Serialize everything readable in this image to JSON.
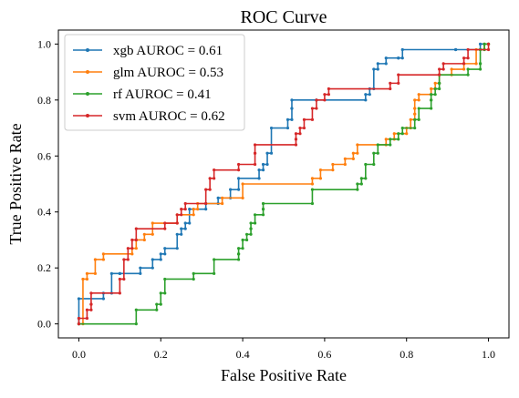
{
  "chart_data": {
    "type": "line",
    "title": "ROC Curve",
    "xlabel": "False Positive Rate",
    "ylabel": "True Positive Rate",
    "xlim": [
      -0.05,
      1.05
    ],
    "ylim": [
      -0.05,
      1.05
    ],
    "xticks": [
      "0.0",
      "0.2",
      "0.4",
      "0.6",
      "0.8",
      "1.0"
    ],
    "yticks": [
      "0.0",
      "0.2",
      "0.4",
      "0.6",
      "0.8",
      "1.0"
    ],
    "grid": false,
    "legend_position": "top-left",
    "series": [
      {
        "name": "xgb AUROC = 0.61",
        "color": "#1f77b4",
        "points": [
          [
            0,
            0
          ],
          [
            0,
            0.02
          ],
          [
            0,
            0.09
          ],
          [
            0.06,
            0.09
          ],
          [
            0.06,
            0.11
          ],
          [
            0.08,
            0.11
          ],
          [
            0.08,
            0.18
          ],
          [
            0.1,
            0.18
          ],
          [
            0.1,
            0.18
          ],
          [
            0.15,
            0.18
          ],
          [
            0.15,
            0.2
          ],
          [
            0.18,
            0.2
          ],
          [
            0.18,
            0.23
          ],
          [
            0.2,
            0.23
          ],
          [
            0.2,
            0.25
          ],
          [
            0.21,
            0.25
          ],
          [
            0.21,
            0.27
          ],
          [
            0.24,
            0.27
          ],
          [
            0.24,
            0.32
          ],
          [
            0.25,
            0.32
          ],
          [
            0.25,
            0.34
          ],
          [
            0.26,
            0.34
          ],
          [
            0.26,
            0.36
          ],
          [
            0.27,
            0.36
          ],
          [
            0.27,
            0.41
          ],
          [
            0.31,
            0.41
          ],
          [
            0.31,
            0.43
          ],
          [
            0.34,
            0.43
          ],
          [
            0.34,
            0.45
          ],
          [
            0.37,
            0.45
          ],
          [
            0.37,
            0.48
          ],
          [
            0.39,
            0.48
          ],
          [
            0.39,
            0.52
          ],
          [
            0.44,
            0.52
          ],
          [
            0.44,
            0.55
          ],
          [
            0.45,
            0.55
          ],
          [
            0.45,
            0.57
          ],
          [
            0.46,
            0.57
          ],
          [
            0.46,
            0.61
          ],
          [
            0.47,
            0.61
          ],
          [
            0.47,
            0.7
          ],
          [
            0.51,
            0.7
          ],
          [
            0.51,
            0.73
          ],
          [
            0.52,
            0.73
          ],
          [
            0.52,
            0.77
          ],
          [
            0.52,
            0.77
          ],
          [
            0.52,
            0.8
          ],
          [
            0.58,
            0.8
          ],
          [
            0.58,
            0.8
          ],
          [
            0.7,
            0.8
          ],
          [
            0.7,
            0.82
          ],
          [
            0.71,
            0.82
          ],
          [
            0.71,
            0.84
          ],
          [
            0.72,
            0.84
          ],
          [
            0.72,
            0.91
          ],
          [
            0.73,
            0.91
          ],
          [
            0.73,
            0.93
          ],
          [
            0.75,
            0.93
          ],
          [
            0.75,
            0.95
          ],
          [
            0.78,
            0.95
          ],
          [
            0.78,
            0.95
          ],
          [
            0.79,
            0.95
          ],
          [
            0.79,
            0.98
          ],
          [
            0.92,
            0.98
          ],
          [
            0.92,
            0.98
          ],
          [
            0.98,
            0.98
          ],
          [
            0.98,
            1.0
          ],
          [
            1.0,
            1.0
          ]
        ]
      },
      {
        "name": "glm AUROC = 0.53",
        "color": "#ff7f0e",
        "points": [
          [
            0,
            0
          ],
          [
            0.01,
            0
          ],
          [
            0.01,
            0.16
          ],
          [
            0.02,
            0.16
          ],
          [
            0.02,
            0.18
          ],
          [
            0.04,
            0.18
          ],
          [
            0.04,
            0.23
          ],
          [
            0.06,
            0.23
          ],
          [
            0.06,
            0.25
          ],
          [
            0.13,
            0.25
          ],
          [
            0.13,
            0.27
          ],
          [
            0.14,
            0.27
          ],
          [
            0.14,
            0.3
          ],
          [
            0.16,
            0.3
          ],
          [
            0.16,
            0.32
          ],
          [
            0.18,
            0.32
          ],
          [
            0.18,
            0.36
          ],
          [
            0.24,
            0.36
          ],
          [
            0.24,
            0.39
          ],
          [
            0.28,
            0.39
          ],
          [
            0.28,
            0.41
          ],
          [
            0.29,
            0.41
          ],
          [
            0.29,
            0.43
          ],
          [
            0.35,
            0.43
          ],
          [
            0.35,
            0.45
          ],
          [
            0.4,
            0.45
          ],
          [
            0.4,
            0.5
          ],
          [
            0.57,
            0.5
          ],
          [
            0.57,
            0.52
          ],
          [
            0.59,
            0.52
          ],
          [
            0.59,
            0.55
          ],
          [
            0.62,
            0.55
          ],
          [
            0.62,
            0.57
          ],
          [
            0.65,
            0.57
          ],
          [
            0.65,
            0.59
          ],
          [
            0.67,
            0.59
          ],
          [
            0.67,
            0.61
          ],
          [
            0.68,
            0.61
          ],
          [
            0.68,
            0.64
          ],
          [
            0.75,
            0.64
          ],
          [
            0.75,
            0.66
          ],
          [
            0.77,
            0.66
          ],
          [
            0.77,
            0.68
          ],
          [
            0.8,
            0.68
          ],
          [
            0.8,
            0.7
          ],
          [
            0.81,
            0.7
          ],
          [
            0.81,
            0.73
          ],
          [
            0.82,
            0.73
          ],
          [
            0.82,
            0.75
          ],
          [
            0.82,
            0.75
          ],
          [
            0.82,
            0.77
          ],
          [
            0.82,
            0.77
          ],
          [
            0.82,
            0.8
          ],
          [
            0.83,
            0.8
          ],
          [
            0.83,
            0.82
          ],
          [
            0.86,
            0.82
          ],
          [
            0.86,
            0.84
          ],
          [
            0.87,
            0.84
          ],
          [
            0.87,
            0.86
          ],
          [
            0.88,
            0.86
          ],
          [
            0.88,
            0.89
          ],
          [
            0.91,
            0.89
          ],
          [
            0.91,
            0.91
          ],
          [
            0.94,
            0.91
          ],
          [
            0.94,
            0.93
          ],
          [
            0.97,
            0.93
          ],
          [
            0.97,
            0.98
          ],
          [
            0.99,
            0.98
          ],
          [
            0.99,
            1.0
          ],
          [
            1.0,
            1.0
          ]
        ]
      },
      {
        "name": "rf AUROC = 0.41",
        "color": "#2ca02c",
        "points": [
          [
            0,
            0
          ],
          [
            0.14,
            0
          ],
          [
            0.14,
            0.05
          ],
          [
            0.19,
            0.05
          ],
          [
            0.19,
            0.07
          ],
          [
            0.2,
            0.07
          ],
          [
            0.2,
            0.11
          ],
          [
            0.21,
            0.11
          ],
          [
            0.21,
            0.16
          ],
          [
            0.28,
            0.16
          ],
          [
            0.28,
            0.18
          ],
          [
            0.33,
            0.18
          ],
          [
            0.33,
            0.23
          ],
          [
            0.39,
            0.23
          ],
          [
            0.39,
            0.25
          ],
          [
            0.39,
            0.25
          ],
          [
            0.39,
            0.27
          ],
          [
            0.4,
            0.27
          ],
          [
            0.4,
            0.3
          ],
          [
            0.41,
            0.3
          ],
          [
            0.41,
            0.32
          ],
          [
            0.42,
            0.32
          ],
          [
            0.42,
            0.34
          ],
          [
            0.42,
            0.34
          ],
          [
            0.42,
            0.36
          ],
          [
            0.43,
            0.36
          ],
          [
            0.43,
            0.39
          ],
          [
            0.45,
            0.39
          ],
          [
            0.45,
            0.41
          ],
          [
            0.45,
            0.41
          ],
          [
            0.45,
            0.43
          ],
          [
            0.57,
            0.43
          ],
          [
            0.57,
            0.48
          ],
          [
            0.68,
            0.48
          ],
          [
            0.68,
            0.5
          ],
          [
            0.69,
            0.5
          ],
          [
            0.69,
            0.52
          ],
          [
            0.7,
            0.52
          ],
          [
            0.7,
            0.57
          ],
          [
            0.72,
            0.57
          ],
          [
            0.72,
            0.61
          ],
          [
            0.73,
            0.61
          ],
          [
            0.73,
            0.64
          ],
          [
            0.76,
            0.64
          ],
          [
            0.76,
            0.66
          ],
          [
            0.78,
            0.66
          ],
          [
            0.78,
            0.68
          ],
          [
            0.79,
            0.68
          ],
          [
            0.79,
            0.7
          ],
          [
            0.82,
            0.7
          ],
          [
            0.82,
            0.73
          ],
          [
            0.83,
            0.73
          ],
          [
            0.83,
            0.77
          ],
          [
            0.86,
            0.77
          ],
          [
            0.86,
            0.8
          ],
          [
            0.86,
            0.8
          ],
          [
            0.86,
            0.82
          ],
          [
            0.87,
            0.82
          ],
          [
            0.87,
            0.84
          ],
          [
            0.88,
            0.84
          ],
          [
            0.88,
            0.86
          ],
          [
            0.88,
            0.86
          ],
          [
            0.88,
            0.89
          ],
          [
            0.95,
            0.89
          ],
          [
            0.95,
            0.91
          ],
          [
            0.98,
            0.91
          ],
          [
            0.98,
            0.93
          ],
          [
            0.98,
            0.93
          ],
          [
            0.98,
            0.98
          ],
          [
            0.99,
            0.98
          ],
          [
            0.99,
            1.0
          ],
          [
            1.0,
            1.0
          ]
        ]
      },
      {
        "name": "svm AUROC = 0.62",
        "color": "#d62728",
        "points": [
          [
            0,
            0
          ],
          [
            0,
            0.02
          ],
          [
            0.02,
            0.02
          ],
          [
            0.02,
            0.05
          ],
          [
            0.03,
            0.05
          ],
          [
            0.03,
            0.07
          ],
          [
            0.03,
            0.07
          ],
          [
            0.03,
            0.11
          ],
          [
            0.1,
            0.11
          ],
          [
            0.1,
            0.16
          ],
          [
            0.11,
            0.16
          ],
          [
            0.11,
            0.23
          ],
          [
            0.12,
            0.23
          ],
          [
            0.12,
            0.27
          ],
          [
            0.13,
            0.27
          ],
          [
            0.13,
            0.3
          ],
          [
            0.14,
            0.3
          ],
          [
            0.14,
            0.34
          ],
          [
            0.21,
            0.34
          ],
          [
            0.21,
            0.36
          ],
          [
            0.24,
            0.36
          ],
          [
            0.24,
            0.39
          ],
          [
            0.25,
            0.39
          ],
          [
            0.25,
            0.41
          ],
          [
            0.26,
            0.41
          ],
          [
            0.26,
            0.43
          ],
          [
            0.31,
            0.43
          ],
          [
            0.31,
            0.48
          ],
          [
            0.32,
            0.48
          ],
          [
            0.32,
            0.52
          ],
          [
            0.33,
            0.52
          ],
          [
            0.33,
            0.55
          ],
          [
            0.39,
            0.55
          ],
          [
            0.39,
            0.57
          ],
          [
            0.43,
            0.57
          ],
          [
            0.43,
            0.61
          ],
          [
            0.43,
            0.61
          ],
          [
            0.43,
            0.64
          ],
          [
            0.53,
            0.64
          ],
          [
            0.53,
            0.66
          ],
          [
            0.53,
            0.66
          ],
          [
            0.53,
            0.68
          ],
          [
            0.54,
            0.68
          ],
          [
            0.54,
            0.7
          ],
          [
            0.55,
            0.7
          ],
          [
            0.55,
            0.73
          ],
          [
            0.57,
            0.73
          ],
          [
            0.57,
            0.77
          ],
          [
            0.58,
            0.77
          ],
          [
            0.58,
            0.8
          ],
          [
            0.6,
            0.8
          ],
          [
            0.6,
            0.82
          ],
          [
            0.61,
            0.82
          ],
          [
            0.61,
            0.84
          ],
          [
            0.76,
            0.84
          ],
          [
            0.76,
            0.86
          ],
          [
            0.78,
            0.86
          ],
          [
            0.78,
            0.89
          ],
          [
            0.88,
            0.89
          ],
          [
            0.88,
            0.91
          ],
          [
            0.89,
            0.91
          ],
          [
            0.89,
            0.93
          ],
          [
            0.94,
            0.93
          ],
          [
            0.94,
            0.95
          ],
          [
            0.95,
            0.95
          ],
          [
            0.95,
            0.98
          ],
          [
            1.0,
            0.98
          ],
          [
            1.0,
            1.0
          ]
        ]
      }
    ]
  }
}
